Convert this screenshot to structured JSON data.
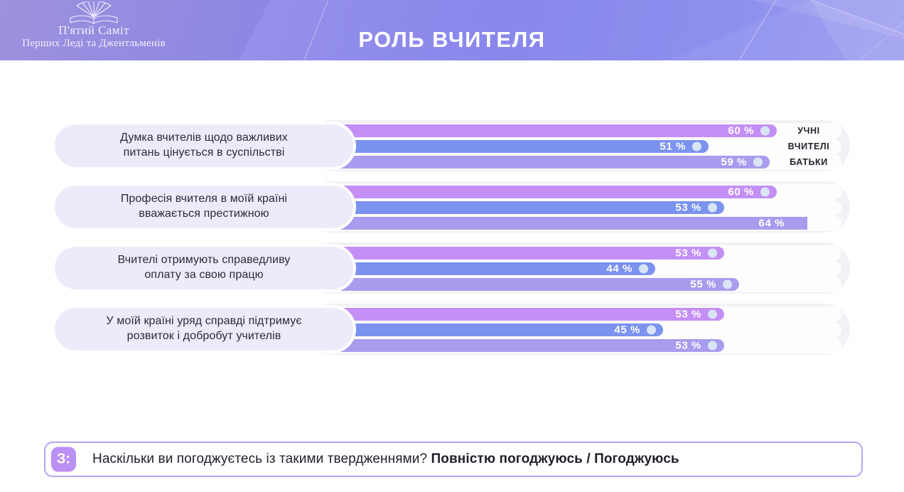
{
  "header": {
    "logo_line1": "П'ятий Саміт",
    "logo_line2": "Перших Леді та Джентльменів",
    "title": "РОЛЬ ВЧИТЕЛЯ"
  },
  "question": {
    "badge": "З:",
    "text_normal": "Наскільки ви погоджуєтесь із такими твердженнями? ",
    "text_bold": "Повністю погоджуюсь / Погоджуюсь"
  },
  "colors": {
    "header_gradient_start": "#a59ae6",
    "header_gradient_end": "#9a99f0",
    "bar_students": "#c48ff5",
    "bar_teachers": "#7b93ee",
    "bar_parents": "#a99cee",
    "bar_end_dot": "#d8e5f4",
    "group_background": "#f2f1f5",
    "track_background": "#fdfdfe",
    "category_pill": "#edeafa",
    "question_border": "#b2a6f1",
    "question_badge": "#bb90f4"
  },
  "chart_data": {
    "type": "bar",
    "orientation": "horizontal",
    "title": "РОЛЬ ВЧИТЕЛЯ",
    "unit": "%",
    "value_label_format": "{v} %",
    "grid": false,
    "legend_position": "right of first group rows",
    "legend": [
      "УЧНІ",
      "ВЧИТЕЛІ",
      "БАТЬКИ"
    ],
    "categories": [
      "Думка вчителів щодо важливих\nпитань цінується в суспільстві",
      "Професія вчителя в моїй країні\nвважається престижною",
      "Вчителі отримують справедливу\nоплату за свою працю",
      "У моїй країні уряд справді підтримує\nрозвиток і добробут учителів"
    ],
    "series": [
      {
        "name": "УЧНІ",
        "slug": "uchni",
        "color": "#c48ff5",
        "values": [
          60,
          60,
          53,
          53
        ]
      },
      {
        "name": "ВЧИТЕЛІ",
        "slug": "vchyteli",
        "color": "#7b93ee",
        "values": [
          51,
          53,
          44,
          45
        ]
      },
      {
        "name": "БАТЬКИ",
        "slug": "batky",
        "color": "#a99cee",
        "values": [
          59,
          64,
          55,
          53
        ]
      }
    ],
    "flat_end_bar": {
      "category_index": 1,
      "series_index": 2,
      "note": "64% bar is cut flat with no end dot"
    }
  }
}
